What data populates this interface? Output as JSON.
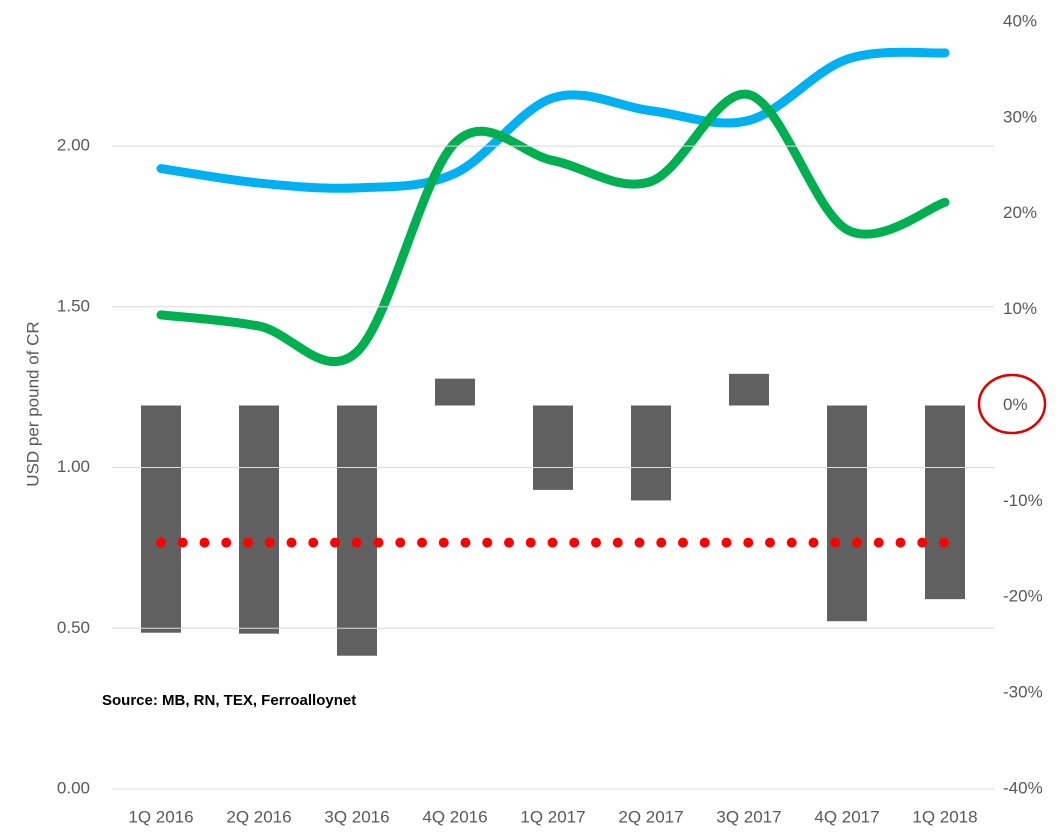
{
  "chart_data": {
    "type": "combo",
    "y_label": "USD per pound of CR",
    "annotation": "Source: MB, RN, TEX, Ferroalloynet",
    "categories": [
      "1Q 2016",
      "2Q 2016",
      "3Q 2016",
      "4Q 2016",
      "1Q 2017",
      "2Q 2017",
      "3Q 2017",
      "4Q 2017",
      "1Q 2018"
    ],
    "ylim": [
      0,
      2.386
    ],
    "yticks": [
      {
        "value": 0,
        "label": "0.00"
      },
      {
        "value": 0.5,
        "label": "0.50"
      },
      {
        "value": 1,
        "label": "1.00"
      },
      {
        "value": 1.5,
        "label": "1.50"
      },
      {
        "value": 2,
        "label": "2.00"
      }
    ],
    "y2lim": [
      -40,
      40
    ],
    "y2ticks": [
      {
        "value": -40,
        "label": "-40%"
      },
      {
        "value": -30,
        "label": "-30%"
      },
      {
        "value": -20,
        "label": "-20%"
      },
      {
        "value": -10,
        "label": "-10%"
      },
      {
        "value": 0,
        "label": "0%"
      },
      {
        "value": 10,
        "label": "10%"
      },
      {
        "value": 20,
        "label": "20%"
      },
      {
        "value": 30,
        "label": "30%"
      },
      {
        "value": 40,
        "label": "40%"
      }
    ],
    "grid": true,
    "series": [
      {
        "type": "bar",
        "axis": "y2",
        "color": "#606060",
        "values": [
          -23.7,
          -23.8,
          -26.1,
          2.8,
          -8.8,
          -9.9,
          3.3,
          -22.5,
          -20.2
        ]
      },
      {
        "type": "line",
        "axis": "y2",
        "color": "#ff0000",
        "style": "dotted",
        "values": [
          -14.3,
          -14.3,
          -14.3,
          -14.3,
          -14.3,
          -14.3,
          -14.3,
          -14.3,
          -14.3
        ]
      },
      {
        "type": "line",
        "axis": "y",
        "color": "#00b0f0",
        "style": "smooth",
        "values": [
          1.93,
          1.885,
          1.87,
          1.915,
          2.15,
          2.11,
          2.08,
          2.27,
          2.29
        ]
      },
      {
        "type": "line",
        "axis": "y",
        "color": "#00b050",
        "style": "smooth",
        "values": [
          1.475,
          1.44,
          1.36,
          2.01,
          1.955,
          1.89,
          2.16,
          1.74,
          1.825
        ]
      }
    ]
  }
}
